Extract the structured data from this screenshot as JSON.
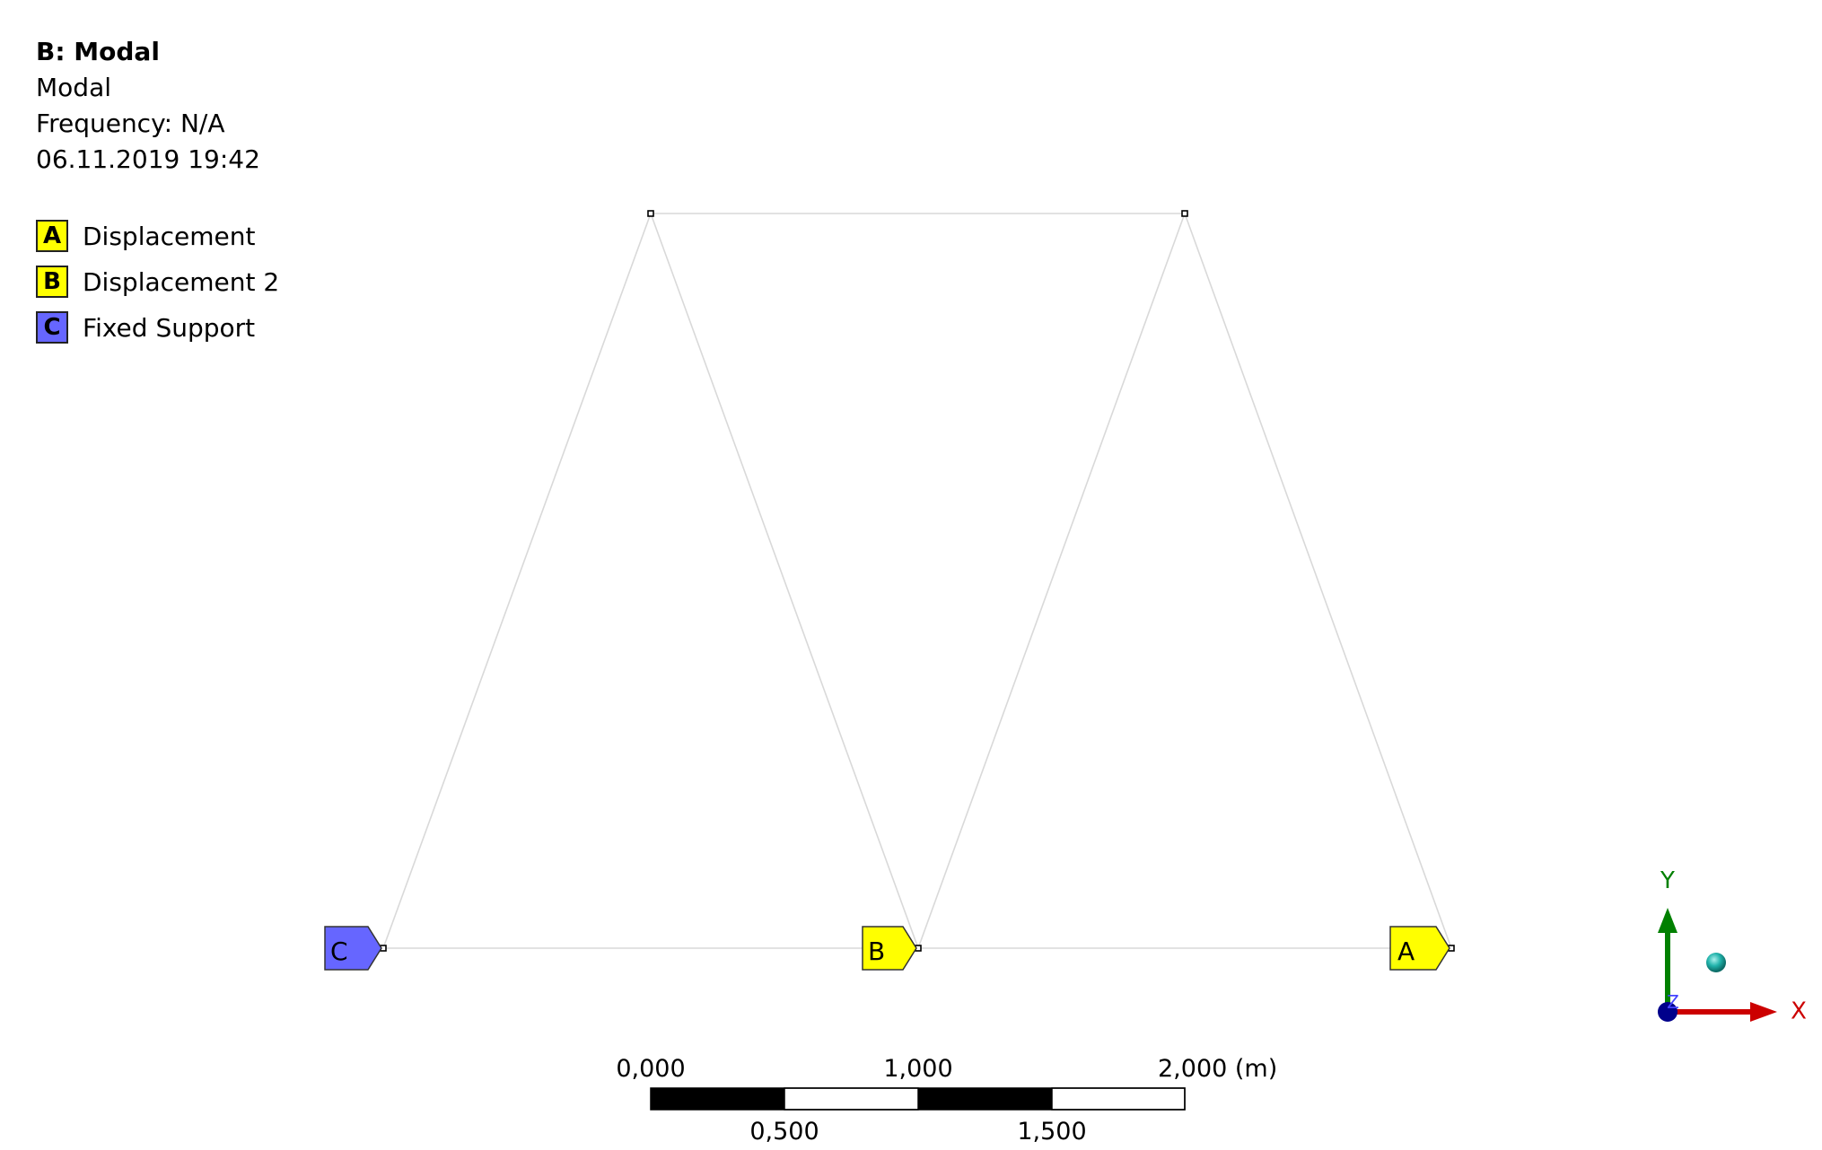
{
  "header": {
    "title": "B: Modal",
    "subtitle": "Modal",
    "frequency": "Frequency: N/A",
    "timestamp": "06.11.2019 19:42"
  },
  "legend": [
    {
      "letter": "A",
      "label": "Displacement",
      "color": "#ffff00"
    },
    {
      "letter": "B",
      "label": "Displacement 2",
      "color": "#ffff00"
    },
    {
      "letter": "C",
      "label": "Fixed Support",
      "color": "#6666ff"
    }
  ],
  "model_tags": {
    "c": {
      "letter": "C",
      "color": "#6666ff"
    },
    "b": {
      "letter": "B",
      "color": "#ffff00"
    },
    "a": {
      "letter": "A",
      "color": "#ffff00"
    }
  },
  "scale_bar": {
    "top_labels": [
      "0,000",
      "1,000",
      "2,000 (m)"
    ],
    "bottom_labels": [
      "0,500",
      "1,500"
    ]
  },
  "triad": {
    "x_label": "X",
    "y_label": "Y",
    "z_label": "Z",
    "x_color": "#cc0000",
    "y_color": "#008000",
    "z_color": "#00008b",
    "iso_color": "#20b2aa"
  }
}
